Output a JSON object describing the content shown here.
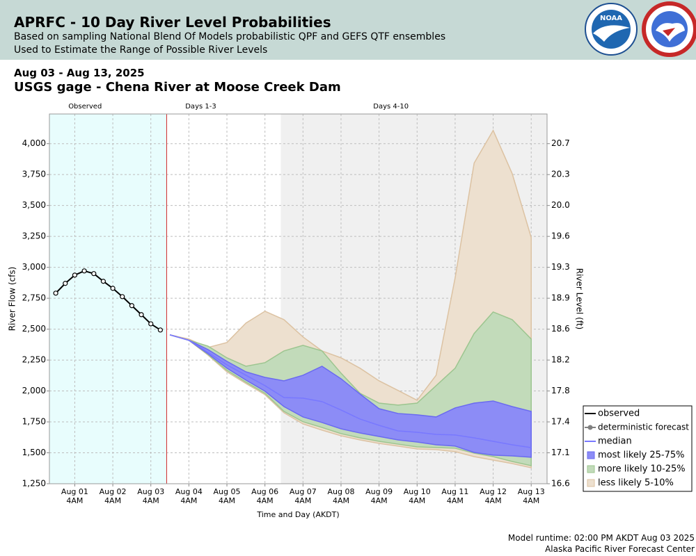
{
  "header": {
    "title": "APRFC - 10 Day River Level Probabilities",
    "subtitles": [
      "Based on sampling National Blend Of Models probabilistic QPF and GEFS QTF ensembles",
      "Used to Estimate the Range of Possible River Levels"
    ]
  },
  "logos": {
    "noaa": "NOAA"
  },
  "date_range": "Aug 03 - Aug 13, 2025",
  "footer": [
    "Model runtime: 02:00 PM AKDT Aug 03 2025",
    "Alaska Pacific River Forecast Center"
  ],
  "chart_data": {
    "type": "band",
    "title": "USGS gage - Chena River at Moose Creek Dam",
    "xlabel": "Time and Day (AKDT)",
    "ylabel": "River Flow (cfs)",
    "y2label": "River Level (ft)",
    "xlim": [
      "Jul 31 12PM",
      "Aug 13 2PM"
    ],
    "xticks": [
      "Aug 01\n4AM",
      "Aug 02\n4AM",
      "Aug 03\n4AM",
      "Aug 04\n4AM",
      "Aug 05\n4AM",
      "Aug 06\n4AM",
      "Aug 07\n4AM",
      "Aug 08\n4AM",
      "Aug 09\n4AM",
      "Aug 10\n4AM",
      "Aug 11\n4AM",
      "Aug 12\n4AM",
      "Aug 13\n4AM"
    ],
    "ylim": [
      1250,
      4240
    ],
    "yticks": [
      {
        "value": 1250,
        "label": "1,250"
      },
      {
        "value": 1500,
        "label": "1,500"
      },
      {
        "value": 1750,
        "label": "1,750"
      },
      {
        "value": 2000,
        "label": "2,000"
      },
      {
        "value": 2250,
        "label": "2,250"
      },
      {
        "value": 2500,
        "label": "2,500"
      },
      {
        "value": 2750,
        "label": "2,750"
      },
      {
        "value": 3000,
        "label": "3,000"
      },
      {
        "value": 3250,
        "label": "3,250"
      },
      {
        "value": 3500,
        "label": "3,500"
      },
      {
        "value": 3750,
        "label": "3,750"
      },
      {
        "value": 4000,
        "label": "4,000"
      }
    ],
    "y2ticks": [
      16.6,
      17.1,
      17.4,
      17.8,
      18.2,
      18.6,
      18.9,
      19.3,
      19.6,
      {
        "value": 20,
        "label": "20.0"
      },
      20.3,
      20.7
    ],
    "grid": true,
    "legend": "outside lower right",
    "regions": [
      {
        "label": "Observed",
        "start": "Jul 31 12PM",
        "end": "Aug 03 2PM",
        "color": "#e8fdfd"
      },
      {
        "label": "Days 1-3",
        "start": "Aug 03 2PM",
        "end": "Aug 06 2PM",
        "color": "#ffffff"
      },
      {
        "label": "Days 4-10",
        "start": "Aug 06 2PM",
        "end": "Aug 13 2PM",
        "color": "#f0f0f0"
      }
    ],
    "series": [
      {
        "name": "observed",
        "type": "line",
        "marker": true,
        "color": "#000000",
        "x": [
          "Jul 31 4PM",
          "Jul 31 10PM",
          "Aug 01 4AM",
          "Aug 01 10AM",
          "Aug 01 4PM",
          "Aug 01 10PM",
          "Aug 02 4AM",
          "Aug 02 10AM",
          "Aug 02 4PM",
          "Aug 02 10PM",
          "Aug 03 4AM",
          "Aug 03 10AM"
        ],
        "values": [
          2791,
          2870,
          2937,
          2971,
          2949,
          2887,
          2830,
          2763,
          2690,
          2617,
          2543,
          2493
        ]
      },
      {
        "name": "deterministic forecast",
        "type": "points",
        "color": "#808080"
      },
      {
        "name": "median",
        "type": "line",
        "color": "#7878ff",
        "x": [
          "Aug 03 4PM",
          "Aug 04 4AM",
          "Aug 04 4PM",
          "Aug 05 4AM",
          "Aug 05 4PM",
          "Aug 06 4AM",
          "Aug 06 4PM",
          "Aug 07 4AM",
          "Aug 07 4PM",
          "Aug 08 4AM",
          "Aug 08 4PM",
          "Aug 09 4AM",
          "Aug 09 4PM",
          "Aug 10 4AM",
          "Aug 10 4PM",
          "Aug 11 4AM",
          "Aug 11 4PM",
          "Aug 12 4AM",
          "Aug 12 4PM",
          "Aug 13 4AM"
        ],
        "values": [
          2454,
          2410,
          2313,
          2211,
          2127,
          2043,
          1947,
          1942,
          1914,
          1846,
          1773,
          1722,
          1677,
          1666,
          1649,
          1644,
          1621,
          1593,
          1565,
          1542
        ]
      },
      {
        "name": "most likely 25-75%",
        "type": "band",
        "color": "#8c8cf6",
        "stroke": "#6a6af0",
        "x": [
          "Aug 03 4PM",
          "Aug 04 4AM",
          "Aug 04 4PM",
          "Aug 05 4AM",
          "Aug 05 4PM",
          "Aug 06 4AM",
          "Aug 06 4PM",
          "Aug 07 4AM",
          "Aug 07 4PM",
          "Aug 08 4AM",
          "Aug 08 4PM",
          "Aug 09 4AM",
          "Aug 09 4PM",
          "Aug 10 4AM",
          "Aug 10 4PM",
          "Aug 11 4AM",
          "Aug 11 4PM",
          "Aug 12 4AM",
          "Aug 12 4PM",
          "Aug 13 4AM"
        ],
        "values": [
          2454,
          2410,
          2335,
          2240,
          2155,
          2110,
          2082,
          2127,
          2200,
          2099,
          1975,
          1857,
          1818,
          1807,
          1790,
          1863,
          1902,
          1919,
          1874,
          1835
        ],
        "lower": [
          2454,
          2410,
          2302,
          2184,
          2088,
          1998,
          1874,
          1790,
          1745,
          1694,
          1660,
          1632,
          1604,
          1587,
          1565,
          1554,
          1503,
          1481,
          1475,
          1464
        ]
      },
      {
        "name": "more likely 10-25%",
        "type": "band",
        "color": "#c2dbba",
        "stroke": "#9cc58f",
        "x": [
          "Aug 03 4PM",
          "Aug 04 4AM",
          "Aug 04 4PM",
          "Aug 05 4AM",
          "Aug 05 4PM",
          "Aug 06 4AM",
          "Aug 06 4PM",
          "Aug 07 4AM",
          "Aug 07 4PM",
          "Aug 08 4AM",
          "Aug 08 4PM",
          "Aug 09 4AM",
          "Aug 09 4PM",
          "Aug 10 4AM",
          "Aug 10 4PM",
          "Aug 11 4AM",
          "Aug 11 4PM",
          "Aug 12 4AM",
          "Aug 12 4PM",
          "Aug 13 4AM"
        ],
        "values": [
          2454,
          2410,
          2363,
          2268,
          2200,
          2229,
          2324,
          2369,
          2324,
          2144,
          1981,
          1902,
          1886,
          1902,
          2043,
          2184,
          2465,
          2639,
          2577,
          2420
        ],
        "lower": [
          2454,
          2410,
          2296,
          2167,
          2071,
          1981,
          1835,
          1751,
          1705,
          1655,
          1621,
          1593,
          1570,
          1548,
          1543,
          1537,
          1497,
          1469,
          1430,
          1396
        ]
      },
      {
        "name": "less likely 5-10%",
        "type": "band",
        "color": "#ede0cf",
        "stroke": "#dcc2a2",
        "x": [
          "Aug 03 4PM",
          "Aug 04 4AM",
          "Aug 04 4PM",
          "Aug 05 4AM",
          "Aug 05 4PM",
          "Aug 06 4AM",
          "Aug 06 4PM",
          "Aug 07 4AM",
          "Aug 07 4PM",
          "Aug 08 4AM",
          "Aug 08 4PM",
          "Aug 09 4AM",
          "Aug 09 4PM",
          "Aug 10 4AM",
          "Aug 10 4PM",
          "Aug 11 4AM",
          "Aug 11 4PM",
          "Aug 12 4AM",
          "Aug 12 4PM",
          "Aug 13 4AM"
        ],
        "values": [
          2454,
          2420,
          2352,
          2392,
          2549,
          2645,
          2577,
          2437,
          2324,
          2268,
          2184,
          2082,
          2004,
          1925,
          2127,
          2915,
          3843,
          4107,
          3758,
          3241
        ],
        "lower": [
          2454,
          2410,
          2291,
          2155,
          2060,
          1970,
          1824,
          1734,
          1683,
          1638,
          1604,
          1576,
          1554,
          1531,
          1526,
          1509,
          1469,
          1441,
          1413,
          1379
        ]
      }
    ]
  }
}
